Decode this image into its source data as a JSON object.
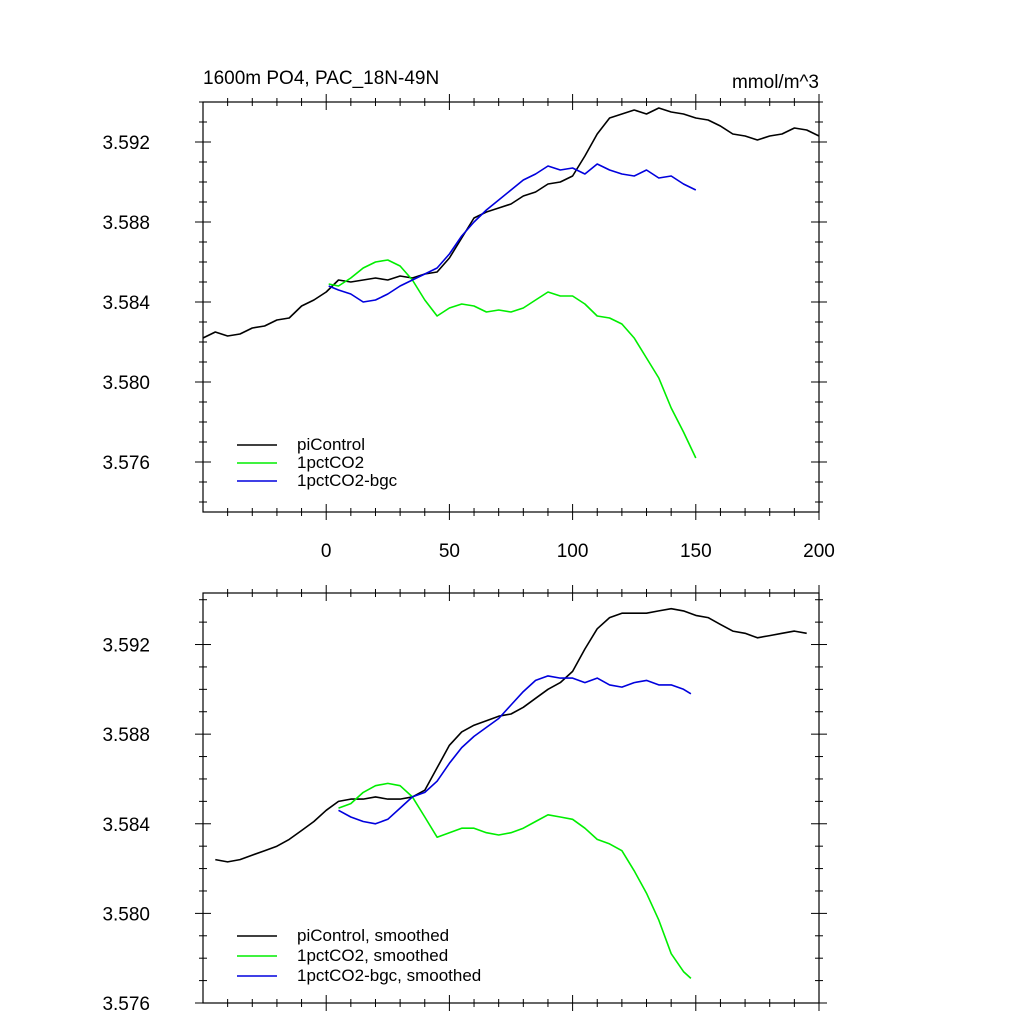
{
  "chart_data": [
    {
      "type": "line",
      "title": "1600m PO4, PAC_18N-49N",
      "units": "mmol/m^3",
      "xlim": [
        -50,
        200
      ],
      "ylim": [
        3.5735,
        3.594
      ],
      "x_ticks": [
        0,
        50,
        100,
        150,
        200
      ],
      "x_tick_labels": [
        "0",
        "50",
        "100",
        "150",
        "200"
      ],
      "y_ticks": [
        3.576,
        3.58,
        3.584,
        3.588,
        3.592
      ],
      "y_tick_labels": [
        "3.576",
        "3.580",
        "3.584",
        "3.588",
        "3.592"
      ],
      "legend_position": "bottom-left",
      "series": [
        {
          "name": "piControl",
          "color": "#000000",
          "x": [
            -50,
            -45,
            -40,
            -35,
            -30,
            -25,
            -20,
            -15,
            -10,
            -5,
            0,
            5,
            10,
            15,
            20,
            25,
            30,
            35,
            40,
            45,
            50,
            55,
            60,
            65,
            70,
            75,
            80,
            85,
            90,
            95,
            100,
            105,
            110,
            115,
            120,
            125,
            130,
            135,
            140,
            145,
            150,
            155,
            160,
            165,
            170,
            175,
            180,
            185,
            190,
            195,
            200
          ],
          "values": [
            3.5822,
            3.5825,
            3.5823,
            3.5824,
            3.5827,
            3.5828,
            3.5831,
            3.5832,
            3.5838,
            3.5841,
            3.5845,
            3.5851,
            3.585,
            3.5851,
            3.5852,
            3.5851,
            3.5853,
            3.5852,
            3.5854,
            3.5855,
            3.5862,
            3.5872,
            3.5882,
            3.5885,
            3.5887,
            3.5889,
            3.5893,
            3.5895,
            3.5899,
            3.59,
            3.5903,
            3.5913,
            3.5924,
            3.5932,
            3.5934,
            3.5936,
            3.5934,
            3.5937,
            3.5935,
            3.5934,
            3.5932,
            3.5931,
            3.5928,
            3.5924,
            3.5923,
            3.5921,
            3.5923,
            3.5924,
            3.5927,
            3.5926,
            3.5923
          ]
        },
        {
          "name": "1pctCO2",
          "color": "#00ee00",
          "x": [
            1,
            5,
            10,
            15,
            20,
            25,
            30,
            35,
            40,
            45,
            50,
            55,
            60,
            65,
            70,
            75,
            80,
            85,
            90,
            95,
            100,
            105,
            110,
            115,
            120,
            125,
            130,
            135,
            140,
            145,
            150
          ],
          "values": [
            3.5849,
            3.5848,
            3.5852,
            3.5857,
            3.586,
            3.5861,
            3.5858,
            3.5851,
            3.5841,
            3.5833,
            3.5837,
            3.5839,
            3.5838,
            3.5835,
            3.5836,
            3.5835,
            3.5837,
            3.5841,
            3.5845,
            3.5843,
            3.5843,
            3.5839,
            3.5833,
            3.5832,
            3.5829,
            3.5822,
            3.5812,
            3.5802,
            3.5787,
            3.5775,
            3.5762
          ]
        },
        {
          "name": "1pctCO2-bgc",
          "color": "#0000dd",
          "x": [
            1,
            5,
            10,
            15,
            20,
            25,
            30,
            35,
            40,
            45,
            50,
            55,
            60,
            65,
            70,
            75,
            80,
            85,
            90,
            95,
            100,
            105,
            110,
            115,
            120,
            125,
            130,
            135,
            140,
            145,
            150
          ],
          "values": [
            3.5848,
            3.5846,
            3.5844,
            3.584,
            3.5841,
            3.5844,
            3.5848,
            3.5851,
            3.5854,
            3.5857,
            3.5864,
            3.5873,
            3.588,
            3.5886,
            3.5891,
            3.5896,
            3.5901,
            3.5904,
            3.5908,
            3.5906,
            3.5907,
            3.5904,
            3.5909,
            3.5906,
            3.5904,
            3.5903,
            3.5906,
            3.5902,
            3.5903,
            3.5899,
            3.5896
          ]
        }
      ]
    },
    {
      "type": "line",
      "title": "",
      "xlim": [
        -50,
        200
      ],
      "ylim": [
        3.576,
        3.5943
      ],
      "x_ticks": [
        0,
        50,
        100,
        150,
        200
      ],
      "y_ticks": [
        3.576,
        3.58,
        3.584,
        3.588,
        3.592
      ],
      "y_tick_labels": [
        "3.576",
        "3.580",
        "3.584",
        "3.588",
        "3.592"
      ],
      "legend_position": "bottom-left",
      "series": [
        {
          "name": "piControl, smoothed",
          "color": "#000000",
          "x": [
            -45,
            -40,
            -35,
            -30,
            -25,
            -20,
            -15,
            -10,
            -5,
            0,
            5,
            10,
            15,
            20,
            25,
            30,
            35,
            40,
            45,
            50,
            55,
            60,
            65,
            70,
            75,
            80,
            85,
            90,
            95,
            100,
            105,
            110,
            115,
            120,
            125,
            130,
            135,
            140,
            145,
            150,
            155,
            160,
            165,
            170,
            175,
            180,
            185,
            190,
            195
          ],
          "values": [
            3.5824,
            3.5823,
            3.5824,
            3.5826,
            3.5828,
            3.583,
            3.5833,
            3.5837,
            3.5841,
            3.5846,
            3.585,
            3.5851,
            3.5851,
            3.5852,
            3.5851,
            3.5851,
            3.5852,
            3.5855,
            3.5865,
            3.5875,
            3.5881,
            3.5884,
            3.5886,
            3.5888,
            3.5889,
            3.5892,
            3.5896,
            3.59,
            3.5903,
            3.5908,
            3.5918,
            3.5927,
            3.5932,
            3.5934,
            3.5934,
            3.5934,
            3.5935,
            3.5936,
            3.5935,
            3.5933,
            3.5932,
            3.5929,
            3.5926,
            3.5925,
            3.5923,
            3.5924,
            3.5925,
            3.5926,
            3.5925
          ]
        },
        {
          "name": "1pctCO2, smoothed",
          "color": "#00ee00",
          "x": [
            5,
            10,
            15,
            20,
            25,
            30,
            35,
            40,
            45,
            50,
            55,
            60,
            65,
            70,
            75,
            80,
            85,
            90,
            95,
            100,
            105,
            110,
            115,
            120,
            125,
            130,
            135,
            140,
            145,
            148
          ],
          "values": [
            3.5847,
            3.5849,
            3.5854,
            3.5857,
            3.5858,
            3.5857,
            3.5852,
            3.5843,
            3.5834,
            3.5836,
            3.5838,
            3.5838,
            3.5836,
            3.5835,
            3.5836,
            3.5838,
            3.5841,
            3.5844,
            3.5843,
            3.5842,
            3.5838,
            3.5833,
            3.5831,
            3.5828,
            3.5819,
            3.5809,
            3.5797,
            3.5782,
            3.5774,
            3.5771
          ]
        },
        {
          "name": "1pctCO2-bgc, smoothed",
          "color": "#0000dd",
          "x": [
            5,
            10,
            15,
            20,
            25,
            30,
            35,
            40,
            45,
            50,
            55,
            60,
            65,
            70,
            75,
            80,
            85,
            90,
            95,
            100,
            105,
            110,
            115,
            120,
            125,
            130,
            135,
            140,
            145,
            148
          ],
          "values": [
            3.5846,
            3.5843,
            3.5841,
            3.584,
            3.5842,
            3.5847,
            3.5852,
            3.5854,
            3.5859,
            3.5867,
            3.5874,
            3.5879,
            3.5883,
            3.5887,
            3.5893,
            3.5899,
            3.5904,
            3.5906,
            3.5905,
            3.5905,
            3.5903,
            3.5905,
            3.5902,
            3.5901,
            3.5903,
            3.5904,
            3.5902,
            3.5902,
            3.59,
            3.5898
          ]
        }
      ]
    }
  ]
}
